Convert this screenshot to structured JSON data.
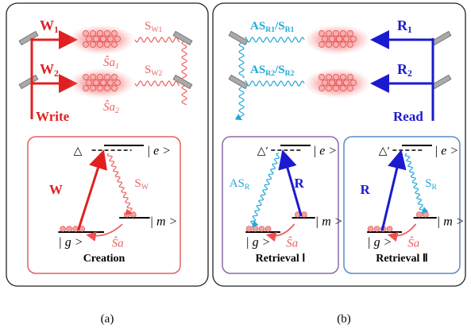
{
  "panel_a": {
    "caption": "(a)",
    "beams": [
      {
        "text": "W",
        "sub": "1"
      },
      {
        "text": "W",
        "sub": "2"
      }
    ],
    "beam_label": "Write",
    "signals": [
      {
        "text": "S",
        "sub": "W1"
      },
      {
        "text": "S",
        "sub": "W2"
      }
    ],
    "spin_waves": [
      {
        "text": "Ŝa",
        "sub": "1"
      },
      {
        "text": "Ŝa",
        "sub": "2"
      }
    ],
    "inset": {
      "detuning": "△",
      "excited": "| e >",
      "ground": "| g >",
      "metastable": "| m >",
      "pump": {
        "text": "W"
      },
      "emitted": {
        "text": "S",
        "sub": "W"
      },
      "spin_wave": "Ŝa",
      "title": "Creation"
    }
  },
  "panel_b": {
    "caption": "(b)",
    "beams": [
      {
        "text": "R",
        "sub": "1"
      },
      {
        "text": "R",
        "sub": "2"
      }
    ],
    "beam_label": "Read",
    "signals": [
      {
        "text": "AS",
        "sub": "R1",
        "text2": "/S",
        "sub2": "R1"
      },
      {
        "text": "AS",
        "sub": "R2",
        "text2": "/S",
        "sub2": "R2"
      }
    ],
    "insets": [
      {
        "detuning": "△′",
        "excited": "| e >",
        "ground": "| g >",
        "metastable": "| m >",
        "pump": {
          "text": "R"
        },
        "emitted": {
          "text": "AS",
          "sub": "R"
        },
        "spin_wave": "Ŝa",
        "title": "Retrieval Ⅰ"
      },
      {
        "detuning": "△′",
        "excited": "| e >",
        "ground": "| g >",
        "metastable": "| m >",
        "pump": {
          "text": "R"
        },
        "emitted": {
          "text": "S",
          "sub": "R"
        },
        "spin_wave": "Ŝa",
        "title": "Retrieval Ⅱ"
      }
    ]
  }
}
